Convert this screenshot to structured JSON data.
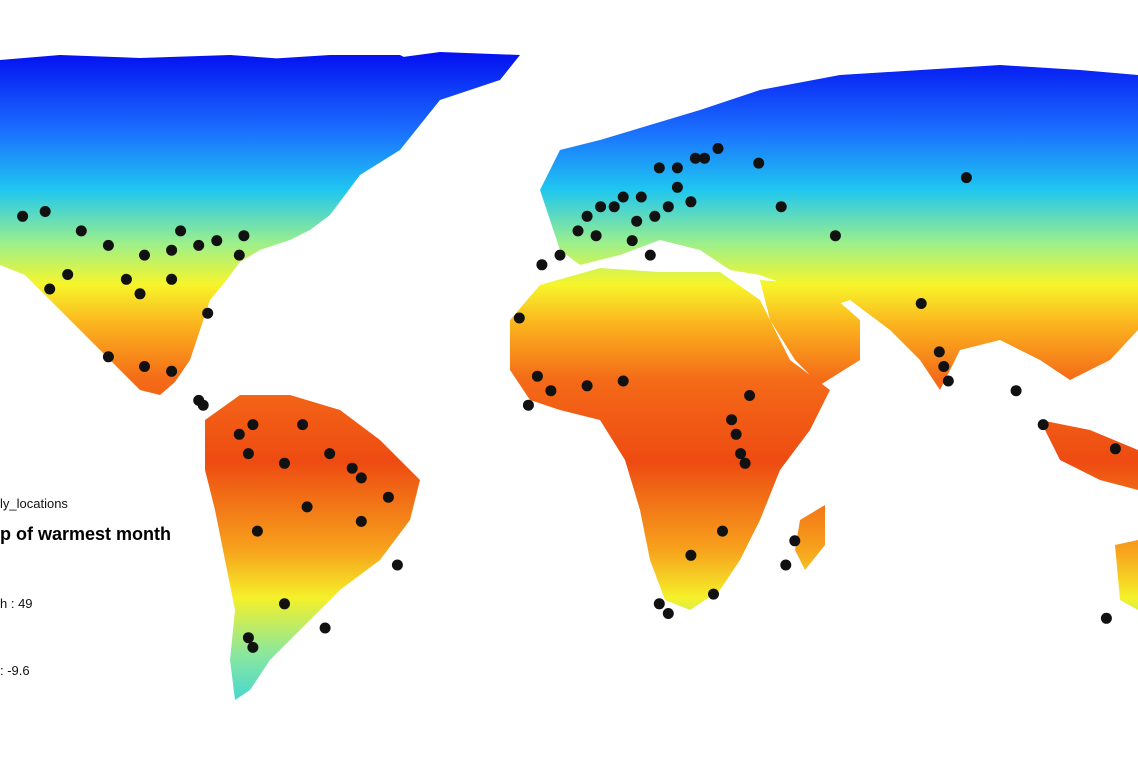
{
  "map": {
    "type": "choropleth-world-map",
    "variable_shown": "maximum temperature of warmest month",
    "color_ramp": [
      "#0000ee",
      "#1a6cff",
      "#1fc6f0",
      "#9ef08a",
      "#f7f52a",
      "#fbb21e",
      "#f46a18",
      "#ee4b12"
    ],
    "ocean_color": "#ffffff",
    "point_color": "#111111"
  },
  "legend": {
    "layer_name": "ly_locations",
    "title": "p of warmest month",
    "high_label": "h : 49",
    "low_label": ": -9.6"
  },
  "chart_data": {
    "type": "scatter",
    "title": "",
    "series": [
      {
        "name": "ly_locations",
        "points": [
          [
            -88,
            45
          ],
          [
            -74,
            44
          ],
          [
            -75,
            40
          ],
          [
            -80,
            43
          ],
          [
            -84,
            42
          ],
          [
            -90,
            41
          ],
          [
            -96,
            40
          ],
          [
            -104,
            42
          ],
          [
            -110,
            45
          ],
          [
            -118,
            49
          ],
          [
            -97,
            32
          ],
          [
            -100,
            35
          ],
          [
            -117,
            33
          ],
          [
            -113,
            36
          ],
          [
            -90,
            35
          ],
          [
            -82,
            28
          ],
          [
            -123,
            48
          ],
          [
            -104,
            19
          ],
          [
            -96,
            17
          ],
          [
            -90,
            16
          ],
          [
            -84,
            10
          ],
          [
            -83,
            9
          ],
          [
            -72,
            5
          ],
          [
            -75,
            3
          ],
          [
            -61,
            5
          ],
          [
            -73,
            -1
          ],
          [
            -65,
            -3
          ],
          [
            -55,
            -1
          ],
          [
            -50,
            -4
          ],
          [
            -48,
            -6
          ],
          [
            -42,
            -10
          ],
          [
            -60,
            -12
          ],
          [
            -71,
            -17
          ],
          [
            -48,
            -15
          ],
          [
            -40,
            -24
          ],
          [
            -65,
            -32
          ],
          [
            -73,
            -39
          ],
          [
            -72,
            -41
          ],
          [
            -56,
            -37
          ],
          [
            -13,
            27
          ],
          [
            -4,
            40
          ],
          [
            0,
            45
          ],
          [
            2,
            48
          ],
          [
            5,
            50
          ],
          [
            8,
            50
          ],
          [
            10,
            52
          ],
          [
            14,
            52
          ],
          [
            13,
            47
          ],
          [
            17,
            48
          ],
          [
            20,
            50
          ],
          [
            25,
            51
          ],
          [
            18,
            58
          ],
          [
            22,
            58
          ],
          [
            26,
            60
          ],
          [
            28,
            60
          ],
          [
            31,
            62
          ],
          [
            40,
            59
          ],
          [
            22,
            54
          ],
          [
            45,
            50
          ],
          [
            57,
            44
          ],
          [
            86,
            56
          ],
          [
            -8,
            38
          ],
          [
            4,
            44
          ],
          [
            12,
            43
          ],
          [
            16,
            40
          ],
          [
            -9,
            15
          ],
          [
            -6,
            12
          ],
          [
            2,
            13
          ],
          [
            10,
            14
          ],
          [
            -11,
            9
          ],
          [
            38,
            11
          ],
          [
            34,
            6
          ],
          [
            35,
            3
          ],
          [
            36,
            -1
          ],
          [
            37,
            -3
          ],
          [
            32,
            -17
          ],
          [
            25,
            -22
          ],
          [
            20,
            -34
          ],
          [
            18,
            -32
          ],
          [
            30,
            -30
          ],
          [
            48,
            -19
          ],
          [
            46,
            -24
          ],
          [
            76,
            30
          ],
          [
            80,
            20
          ],
          [
            81,
            17
          ],
          [
            82,
            14
          ],
          [
            97,
            12
          ],
          [
            103,
            5
          ],
          [
            119,
            0
          ],
          [
            117,
            -35
          ]
        ]
      }
    ],
    "xlim": [
      -128,
      124
    ],
    "ylim": [
      -56,
      84
    ]
  }
}
